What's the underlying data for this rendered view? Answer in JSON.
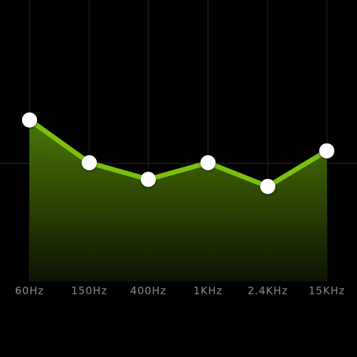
{
  "equalizer": {
    "accent_color": "#7cc00e",
    "handle_color": "#ffffff",
    "grid_color": "#2a2a2a",
    "label_color": "#8a8a8a",
    "bands": [
      {
        "label": "60Hz",
        "level": 0.68
      },
      {
        "label": "150Hz",
        "level": 0.5
      },
      {
        "label": "400Hz",
        "level": 0.43
      },
      {
        "label": "1KHz",
        "level": 0.5
      },
      {
        "label": "2.4KHz",
        "level": 0.4
      },
      {
        "label": "15KHz",
        "level": 0.55
      }
    ]
  }
}
